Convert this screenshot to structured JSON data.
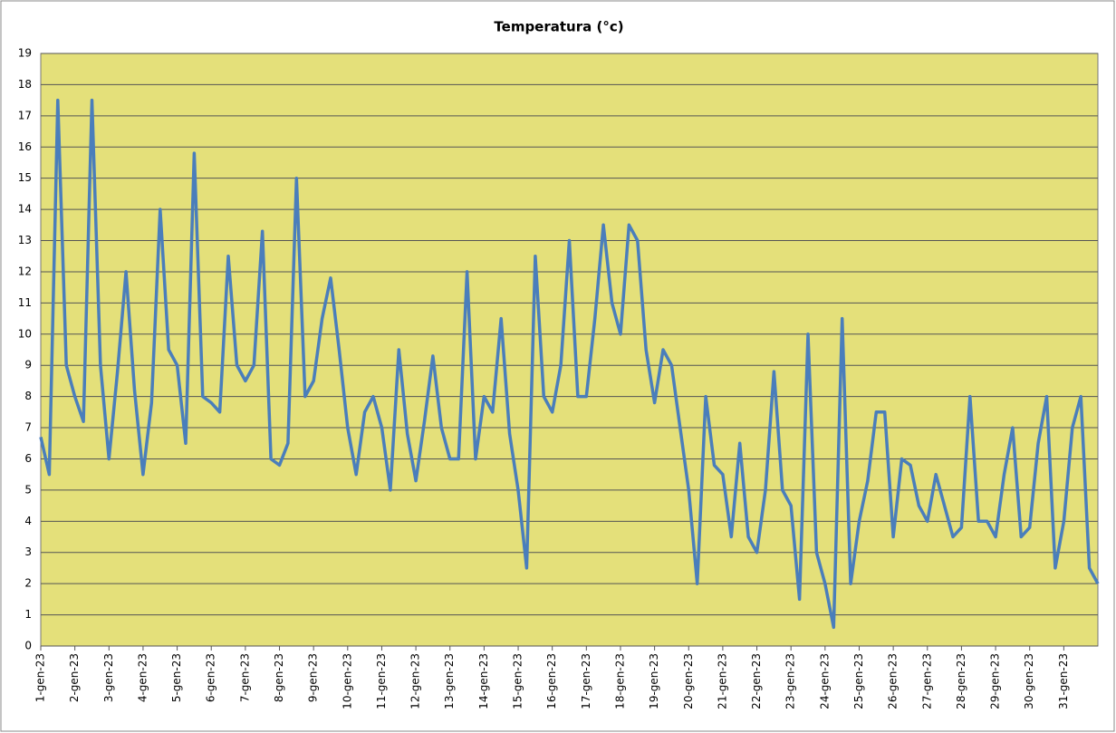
{
  "chart_data": {
    "type": "line",
    "title": "Temperatura (°c)",
    "categories": [
      "1-gen-23",
      null,
      null,
      null,
      "2-gen-23",
      null,
      null,
      null,
      "3-gen-23",
      null,
      null,
      null,
      "4-gen-23",
      null,
      null,
      null,
      "5-gen-23",
      null,
      null,
      null,
      "6-gen-23",
      null,
      null,
      null,
      "7-gen-23",
      null,
      null,
      null,
      "8-gen-23",
      null,
      null,
      null,
      "9-gen-23",
      null,
      null,
      null,
      "10-gen-23",
      null,
      null,
      null,
      "11-gen-23",
      null,
      null,
      null,
      "12-gen-23",
      null,
      null,
      null,
      "13-gen-23",
      null,
      null,
      null,
      "14-gen-23",
      null,
      null,
      null,
      "15-gen-23",
      null,
      null,
      null,
      "16-gen-23",
      null,
      null,
      null,
      "17-gen-23",
      null,
      null,
      null,
      "18-gen-23",
      null,
      null,
      null,
      "19-gen-23",
      null,
      null,
      null,
      "20-gen-23",
      null,
      null,
      null,
      "21-gen-23",
      null,
      null,
      null,
      "22-gen-23",
      null,
      null,
      null,
      "23-gen-23",
      null,
      null,
      null,
      "24-gen-23",
      null,
      null,
      null,
      "25-gen-23",
      null,
      null,
      null,
      "26-gen-23",
      null,
      null,
      null,
      "27-gen-23",
      null,
      null,
      null,
      "28-gen-23",
      null,
      null,
      null,
      "29-gen-23",
      null,
      null,
      null,
      "30-gen-23",
      null,
      null,
      null,
      "31-gen-23",
      null,
      null,
      null,
      null
    ],
    "values": [
      6.7,
      5.5,
      17.5,
      9,
      8,
      7.2,
      17.5,
      9,
      6,
      8.8,
      12,
      8.2,
      5.5,
      7.8,
      14,
      9.5,
      9,
      6.5,
      15.8,
      8,
      7.8,
      7.5,
      12.5,
      9,
      8.5,
      9,
      13.3,
      6,
      5.8,
      6.5,
      15,
      8,
      8.5,
      10.5,
      11.8,
      9.5,
      7,
      5.5,
      7.5,
      8,
      7,
      5,
      9.5,
      6.8,
      5.3,
      7.2,
      9.3,
      7,
      6,
      6,
      12,
      6,
      8,
      7.5,
      10.5,
      6.8,
      5,
      2.5,
      12.5,
      8,
      7.5,
      9,
      13,
      8,
      8,
      10.5,
      13.5,
      11,
      10,
      13.5,
      13,
      9.5,
      7.8,
      9.5,
      9,
      7,
      5,
      2,
      8,
      5.8,
      5.5,
      3.5,
      6.5,
      3.5,
      3,
      5,
      8.8,
      5,
      4.5,
      1.5,
      10,
      3,
      2,
      0.6,
      10.5,
      2,
      4,
      5.3,
      7.5,
      7.5,
      3.5,
      6,
      5.8,
      4.5,
      4,
      5.5,
      4.5,
      3.5,
      3.8,
      8,
      4,
      4,
      3.5,
      5.5,
      7,
      3.5,
      3.8,
      6.5,
      8,
      2.5,
      4,
      7,
      8,
      2.5,
      2
    ],
    "color": "#4a7ebb",
    "ylim": [
      0,
      19
    ],
    "yticks": [
      0,
      1,
      2,
      3,
      4,
      5,
      6,
      7,
      8,
      9,
      10,
      11,
      12,
      13,
      14,
      15,
      16,
      17,
      18,
      19
    ],
    "grid": true
  }
}
